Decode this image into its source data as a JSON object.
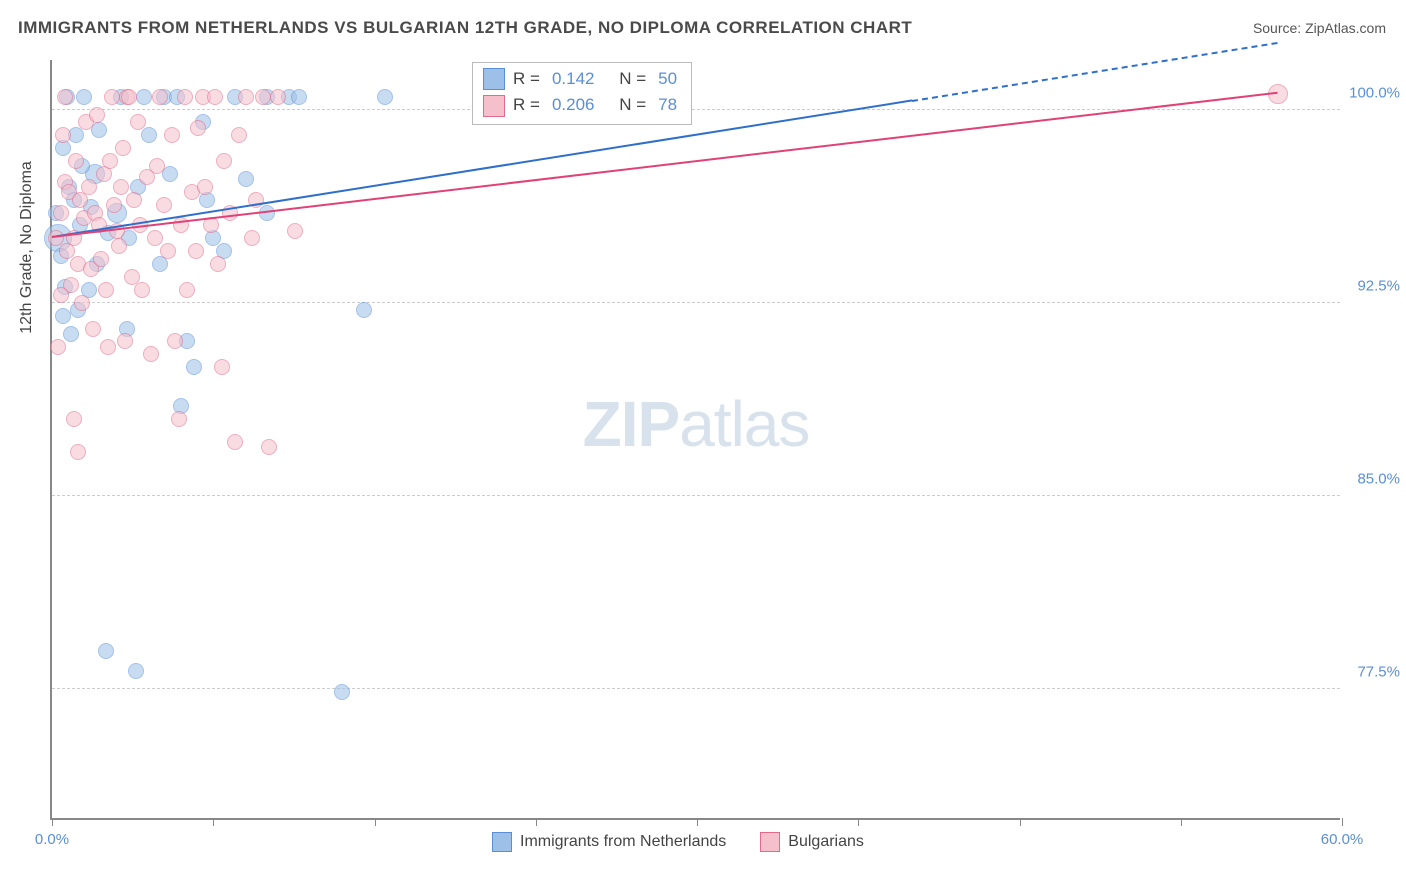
{
  "title": "IMMIGRANTS FROM NETHERLANDS VS BULGARIAN 12TH GRADE, NO DIPLOMA CORRELATION CHART",
  "source": "Source: ZipAtlas.com",
  "y_axis_title": "12th Grade, No Diploma",
  "watermark_zip": "ZIP",
  "watermark_atlas": "atlas",
  "chart": {
    "type": "scatter",
    "xlim": [
      0,
      60
    ],
    "ylim": [
      72.5,
      102
    ],
    "x_ticks": [
      0,
      7.5,
      15,
      22.5,
      30,
      37.5,
      45,
      52.5,
      60
    ],
    "x_tick_labels": {
      "0": "0.0%",
      "60": "60.0%"
    },
    "y_ticks": [
      77.5,
      85.0,
      92.5,
      100.0
    ],
    "y_tick_label_suffix": "%",
    "grid_color": "#cccccc",
    "background_color": "#ffffff",
    "axis_color": "#888888",
    "marker_radius": 8,
    "marker_opacity": 0.55,
    "series": [
      {
        "name": "Immigrants from Netherlands",
        "fill_color": "#9cc0e7",
        "stroke_color": "#5a8fd6",
        "R": 0.142,
        "N": 50,
        "trend": {
          "x1": 0,
          "y1": 95.0,
          "x2": 40,
          "y2": 100.3,
          "extend_x": 57,
          "color": "#2f6fc9",
          "dash_extend": true
        },
        "points": [
          [
            0.3,
            95.0,
            14
          ],
          [
            0.5,
            92.0,
            8
          ],
          [
            0.8,
            97.0,
            8
          ],
          [
            0.4,
            94.3,
            8
          ],
          [
            1.0,
            96.5,
            8
          ],
          [
            1.3,
            95.5,
            8
          ],
          [
            1.5,
            100.5,
            8
          ],
          [
            1.7,
            93.0,
            8
          ],
          [
            2.0,
            97.5,
            10
          ],
          [
            2.2,
            99.2,
            8
          ],
          [
            2.5,
            79.0,
            8
          ],
          [
            3.0,
            96.0,
            10
          ],
          [
            3.2,
            100.5,
            8
          ],
          [
            3.5,
            91.5,
            8
          ],
          [
            3.9,
            78.2,
            8
          ],
          [
            4.0,
            97.0,
            8
          ],
          [
            4.5,
            99.0,
            8
          ],
          [
            5.0,
            94.0,
            8
          ],
          [
            5.2,
            100.5,
            8
          ],
          [
            5.5,
            97.5,
            8
          ],
          [
            6.0,
            88.5,
            8
          ],
          [
            6.3,
            91.0,
            8
          ],
          [
            6.6,
            90.0,
            8
          ],
          [
            7.0,
            99.5,
            8
          ],
          [
            7.2,
            96.5,
            8
          ],
          [
            8.0,
            94.5,
            8
          ],
          [
            8.5,
            100.5,
            8
          ],
          [
            9.0,
            97.3,
            8
          ],
          [
            10.0,
            100.5,
            8
          ],
          [
            10.0,
            96.0,
            8
          ],
          [
            11.0,
            100.5,
            8
          ],
          [
            11.5,
            100.5,
            8
          ],
          [
            14.5,
            92.2,
            8
          ],
          [
            13.5,
            77.4,
            8
          ],
          [
            15.5,
            100.5,
            8
          ],
          [
            2.6,
            95.2,
            8
          ],
          [
            1.1,
            99.0,
            8
          ],
          [
            0.7,
            100.5,
            8
          ],
          [
            4.3,
            100.5,
            8
          ],
          [
            0.6,
            93.1,
            8
          ],
          [
            1.4,
            97.8,
            8
          ],
          [
            1.8,
            96.2,
            8
          ],
          [
            2.1,
            94.0,
            8
          ],
          [
            0.9,
            91.3,
            8
          ],
          [
            3.6,
            95.0,
            8
          ],
          [
            0.2,
            96.0,
            8
          ],
          [
            5.8,
            100.5,
            8
          ],
          [
            7.5,
            95.0,
            8
          ],
          [
            1.2,
            92.2,
            8
          ],
          [
            0.5,
            98.5,
            8
          ]
        ]
      },
      {
        "name": "Bulgarians",
        "fill_color": "#f5c0cb",
        "stroke_color": "#e06b8b",
        "R": 0.206,
        "N": 78,
        "trend": {
          "x1": 0,
          "y1": 95.0,
          "x2": 57,
          "y2": 100.6,
          "extend_x": 57,
          "color": "#e04176",
          "dash_extend": false
        },
        "points": [
          [
            0.2,
            95.0,
            8
          ],
          [
            0.4,
            96.0,
            8
          ],
          [
            0.6,
            97.2,
            8
          ],
          [
            0.5,
            99.0,
            8
          ],
          [
            0.7,
            94.5,
            8
          ],
          [
            0.8,
            96.8,
            8
          ],
          [
            0.9,
            93.2,
            8
          ],
          [
            1.0,
            95.0,
            8
          ],
          [
            1.1,
            98.0,
            8
          ],
          [
            1.2,
            94.0,
            8
          ],
          [
            1.3,
            96.5,
            8
          ],
          [
            1.4,
            92.5,
            8
          ],
          [
            1.5,
            95.8,
            8
          ],
          [
            1.6,
            99.5,
            8
          ],
          [
            1.7,
            97.0,
            8
          ],
          [
            1.8,
            93.8,
            8
          ],
          [
            1.9,
            91.5,
            8
          ],
          [
            2.0,
            96.0,
            8
          ],
          [
            2.1,
            99.8,
            8
          ],
          [
            2.2,
            95.5,
            8
          ],
          [
            2.3,
            94.2,
            8
          ],
          [
            2.4,
            97.5,
            8
          ],
          [
            2.5,
            93.0,
            8
          ],
          [
            2.6,
            90.8,
            8
          ],
          [
            2.8,
            100.5,
            8
          ],
          [
            2.9,
            96.3,
            8
          ],
          [
            3.0,
            95.3,
            8
          ],
          [
            3.1,
            94.7,
            8
          ],
          [
            3.3,
            98.5,
            8
          ],
          [
            3.4,
            91.0,
            8
          ],
          [
            3.5,
            100.5,
            8
          ],
          [
            3.7,
            93.5,
            8
          ],
          [
            3.8,
            96.5,
            8
          ],
          [
            4.0,
            99.5,
            8
          ],
          [
            4.1,
            95.5,
            8
          ],
          [
            4.4,
            97.4,
            8
          ],
          [
            4.6,
            90.5,
            8
          ],
          [
            4.8,
            95.0,
            8
          ],
          [
            5.0,
            100.5,
            8
          ],
          [
            5.2,
            96.3,
            8
          ],
          [
            5.4,
            94.5,
            8
          ],
          [
            5.6,
            99.0,
            8
          ],
          [
            5.7,
            91.0,
            8
          ],
          [
            5.9,
            88.0,
            8
          ],
          [
            6.0,
            95.5,
            8
          ],
          [
            6.2,
            100.5,
            8
          ],
          [
            6.3,
            93.0,
            8
          ],
          [
            6.5,
            96.8,
            8
          ],
          [
            6.8,
            99.3,
            8
          ],
          [
            7.0,
            100.5,
            8
          ],
          [
            7.1,
            97.0,
            8
          ],
          [
            7.4,
            95.5,
            8
          ],
          [
            7.6,
            100.5,
            8
          ],
          [
            7.7,
            94.0,
            8
          ],
          [
            7.9,
            90.0,
            8
          ],
          [
            8.0,
            98.0,
            8
          ],
          [
            8.3,
            96.0,
            8
          ],
          [
            8.5,
            87.1,
            8
          ],
          [
            8.7,
            99.0,
            8
          ],
          [
            9.0,
            100.5,
            8
          ],
          [
            9.3,
            95.0,
            8
          ],
          [
            9.5,
            96.5,
            8
          ],
          [
            9.8,
            100.5,
            8
          ],
          [
            10.1,
            86.9,
            8
          ],
          [
            10.5,
            100.5,
            8
          ],
          [
            1.0,
            88.0,
            8
          ],
          [
            1.2,
            86.7,
            8
          ],
          [
            0.4,
            92.8,
            8
          ],
          [
            0.3,
            90.8,
            8
          ],
          [
            0.6,
            100.5,
            8
          ],
          [
            2.7,
            98.0,
            8
          ],
          [
            3.2,
            97.0,
            8
          ],
          [
            3.6,
            100.5,
            8
          ],
          [
            4.2,
            93.0,
            8
          ],
          [
            4.9,
            97.8,
            8
          ],
          [
            6.7,
            94.5,
            8
          ],
          [
            57.0,
            100.6,
            10
          ],
          [
            11.3,
            95.3,
            8
          ]
        ]
      }
    ],
    "stats_labels": {
      "R": "R =",
      "N": "N ="
    },
    "legend_bottom": [
      {
        "label": "Immigrants from Netherlands",
        "fill": "#9cc0e7",
        "stroke": "#5a8fd6"
      },
      {
        "label": "Bulgarians",
        "fill": "#f5c0cb",
        "stroke": "#e06b8b"
      }
    ]
  }
}
